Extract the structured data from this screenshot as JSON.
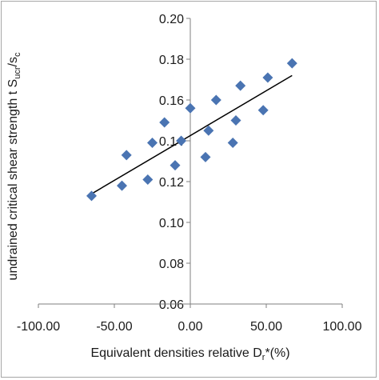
{
  "chart_data": {
    "type": "scatter",
    "xlabel": {
      "main": "Equivalent densities relative D",
      "sub": "r",
      "suffix": "*(%)"
    },
    "ylabel": {
      "main": "undrained critical shear strength t S",
      "sub1": "ucr",
      "mid": "/s",
      "sub2": "c"
    },
    "xlim": [
      -100,
      100
    ],
    "ylim": [
      0.06,
      0.2
    ],
    "x_ticks": [
      "-100.00",
      "-50.00",
      "0.00",
      "50.00",
      "100.00"
    ],
    "y_ticks": [
      "0.06",
      "0.08",
      "0.10",
      "0.12",
      "0.14",
      "0.16",
      "0.18",
      "0.20"
    ],
    "x_tick_values": [
      -100,
      -50,
      0,
      50,
      100
    ],
    "y_tick_values": [
      0.06,
      0.08,
      0.1,
      0.12,
      0.14,
      0.16,
      0.18,
      0.2
    ],
    "grid": false,
    "marker": "diamond",
    "marker_color": "#4a74b2",
    "trendline_color": "#000000",
    "series": [
      {
        "x": [
          -65,
          -45,
          -42,
          -28,
          -25,
          -17,
          -10,
          -6,
          0,
          10,
          12,
          17,
          28,
          30,
          33,
          48,
          51,
          67
        ],
        "y": [
          0.113,
          0.118,
          0.133,
          0.121,
          0.139,
          0.149,
          0.128,
          0.14,
          0.156,
          0.132,
          0.145,
          0.16,
          0.139,
          0.15,
          0.167,
          0.155,
          0.171,
          0.178
        ]
      }
    ],
    "trendline": {
      "x": [
        -65,
        67
      ],
      "y": [
        0.114,
        0.172
      ]
    }
  }
}
